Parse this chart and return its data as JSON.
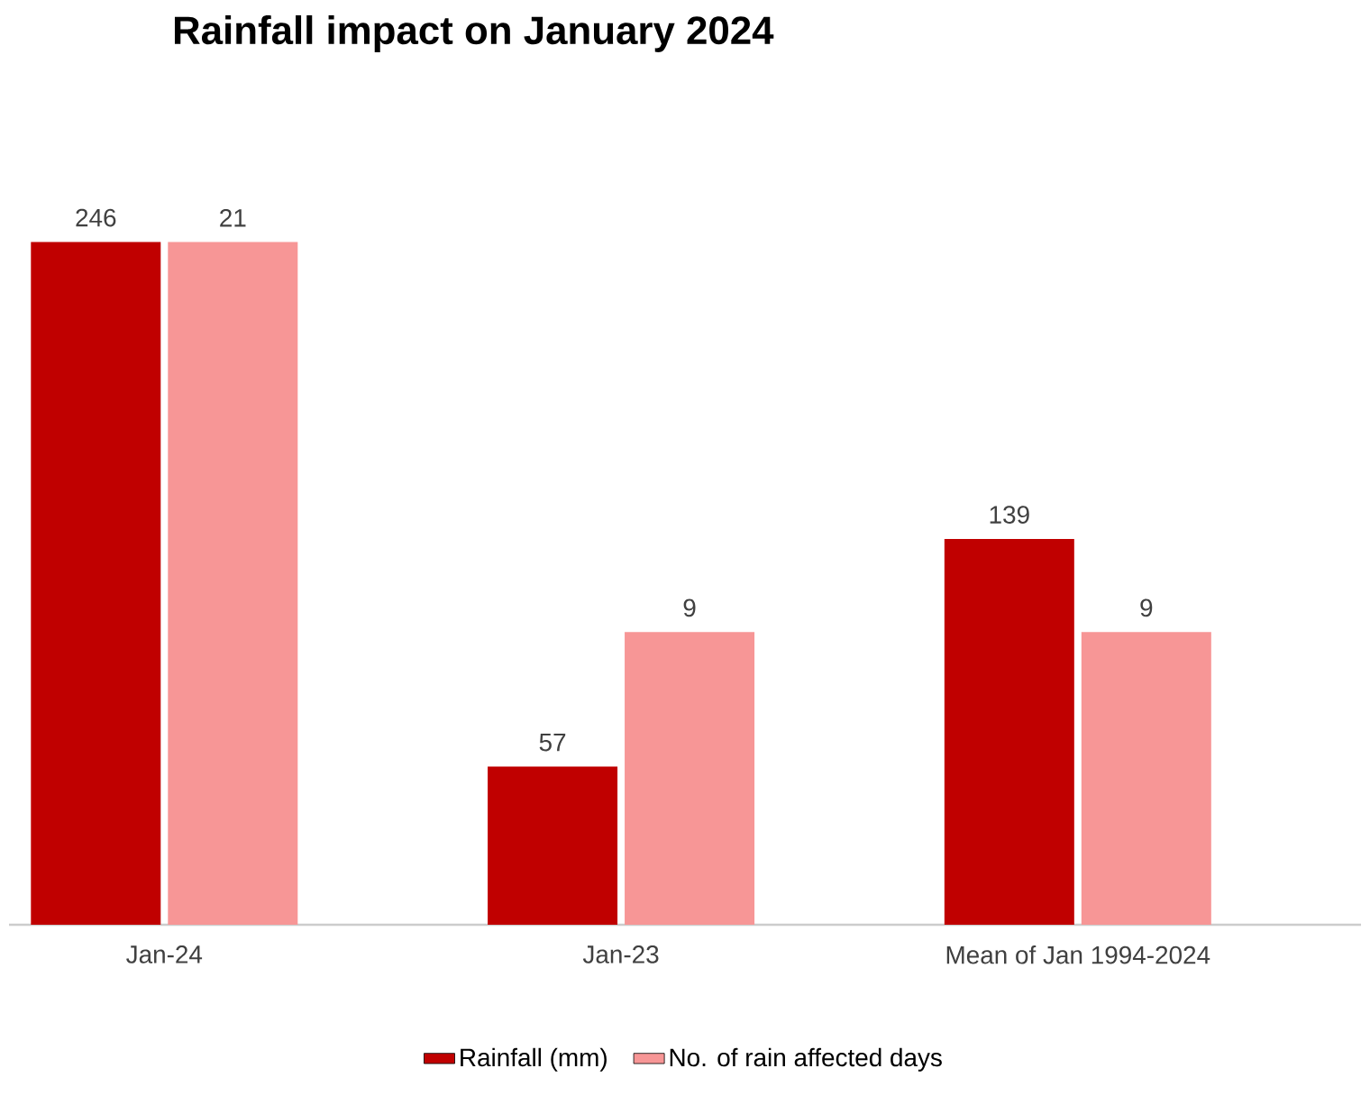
{
  "chart_data": {
    "type": "bar",
    "title": "Rainfall impact on January 2024",
    "categories": [
      "Jan-24",
      "Jan-23",
      "Mean of Jan 1994-2024"
    ],
    "series": [
      {
        "name": "Rainfall (mm)",
        "color": "#c00000",
        "values": [
          246,
          57,
          139
        ]
      },
      {
        "name": "No. of rain affected days",
        "color": "#f79696",
        "values": [
          21,
          9,
          9
        ],
        "axis": "y2"
      }
    ],
    "data_labels": true,
    "legend": "bottom",
    "tick_labels": "x"
  }
}
